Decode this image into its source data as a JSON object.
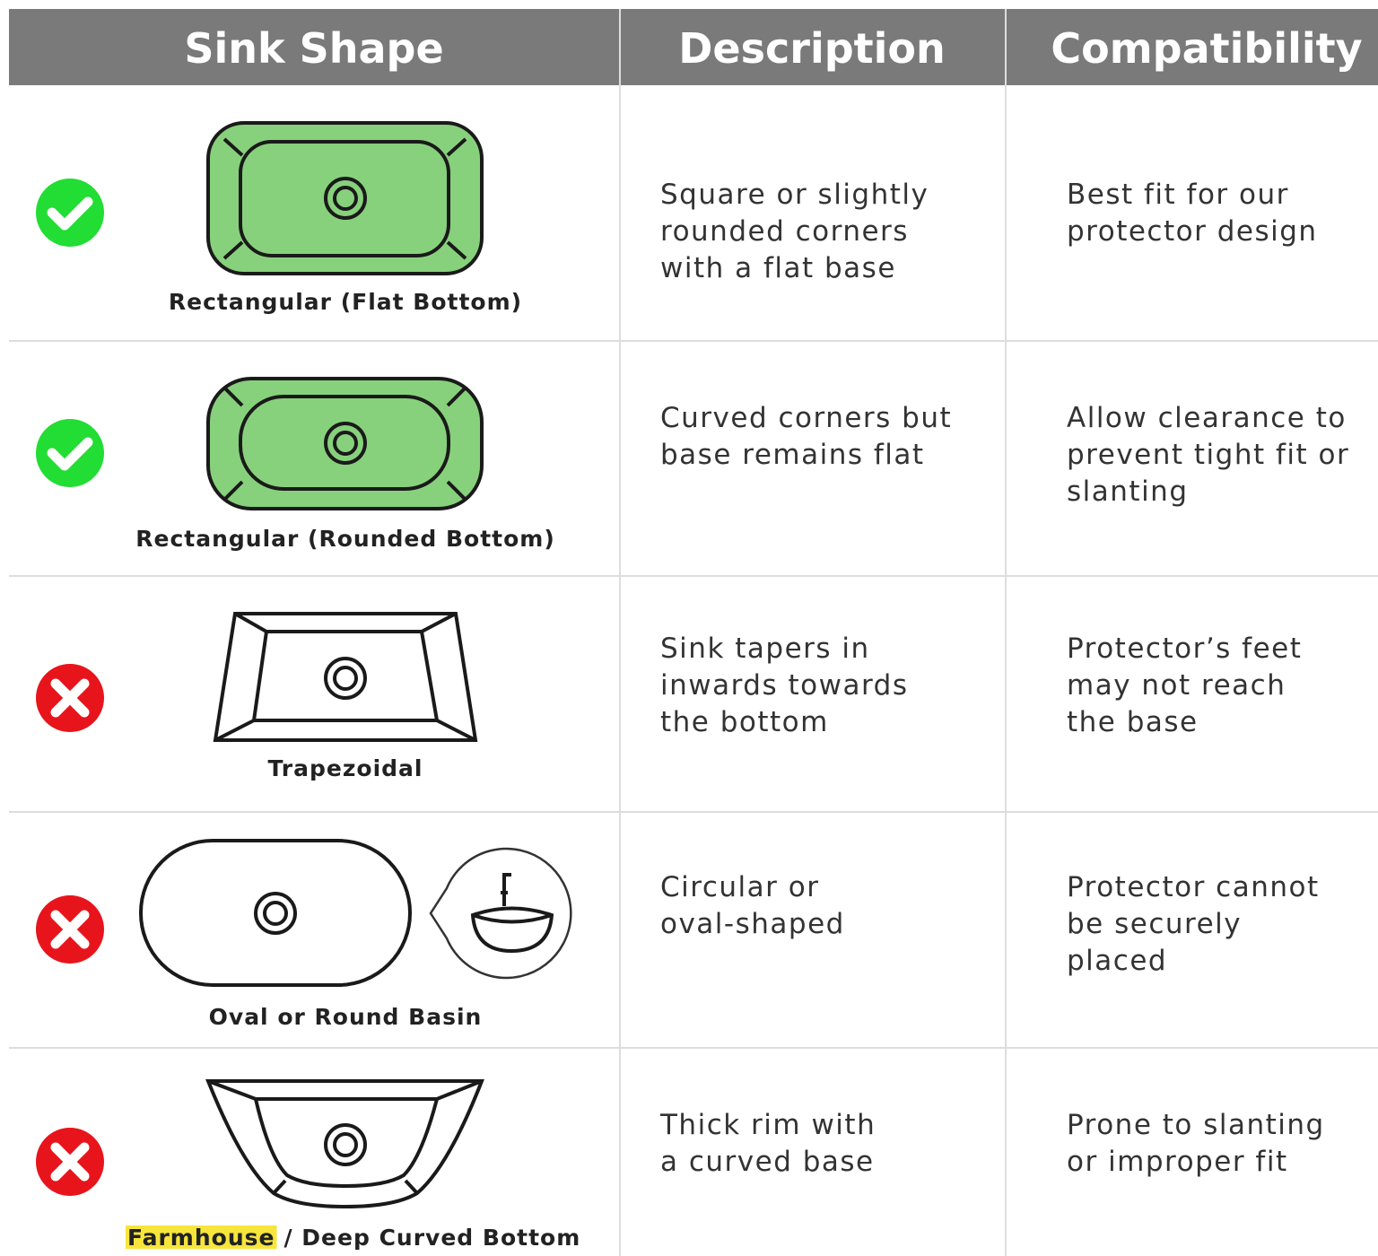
{
  "header": {
    "columns": [
      "Sink Shape",
      "Description",
      "Compatibility"
    ]
  },
  "rows": [
    {
      "compatible": true,
      "shape_label": "Rectangular (Flat Bottom)",
      "description": [
        "Square or slightly",
        "rounded corners",
        "with a flat base"
      ],
      "compatibility": [
        "Best fit for our",
        "protector design"
      ]
    },
    {
      "compatible": true,
      "shape_label": "Rectangular (Rounded Bottom)",
      "description": [
        "Curved corners but",
        "base remains flat"
      ],
      "compatibility": [
        "Allow clearance to",
        "prevent tight fit or",
        "slanting"
      ]
    },
    {
      "compatible": false,
      "shape_label": "Trapezoidal",
      "description": [
        "Sink tapers in",
        "inwards towards",
        "the bottom"
      ],
      "compatibility": [
        "Protector’s feet",
        "may not reach",
        "the base"
      ]
    },
    {
      "compatible": false,
      "shape_label": "Oval or Round Basin",
      "description": [
        "Circular or",
        "oval-shaped"
      ],
      "compatibility": [
        "Protector cannot",
        "be securely",
        "placed"
      ]
    },
    {
      "compatible": false,
      "shape_label_highlight": "Farmhouse",
      "shape_label": "/ Deep Curved Bottom",
      "description": [
        "Thick rim with",
        "a curved base"
      ],
      "compatibility": [
        "Prone to slanting",
        "or improper fit"
      ]
    }
  ]
}
